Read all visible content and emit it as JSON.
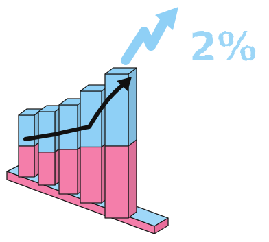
{
  "headline": {
    "percent_text": "2%"
  },
  "colors": {
    "bar_top": "#8fd0f6",
    "bar_bottom": "#f47eaa",
    "base": "#f47eaa",
    "base_top": "#9fd8f8",
    "trend_line": "#111111",
    "up_arrow": "#8fd0f6",
    "percent": "#9cd6f7"
  },
  "bars": [
    {
      "name": "bar-1",
      "blue_share": 0.5
    },
    {
      "name": "bar-2",
      "blue_share": 0.55
    },
    {
      "name": "bar-3",
      "blue_share": 0.5
    },
    {
      "name": "bar-4",
      "blue_share": 0.5
    },
    {
      "name": "bar-5",
      "blue_share": 0.5
    }
  ],
  "icons": {
    "trend": "trend-up-arrow-icon",
    "growth": "zigzag-up-arrow-icon"
  }
}
